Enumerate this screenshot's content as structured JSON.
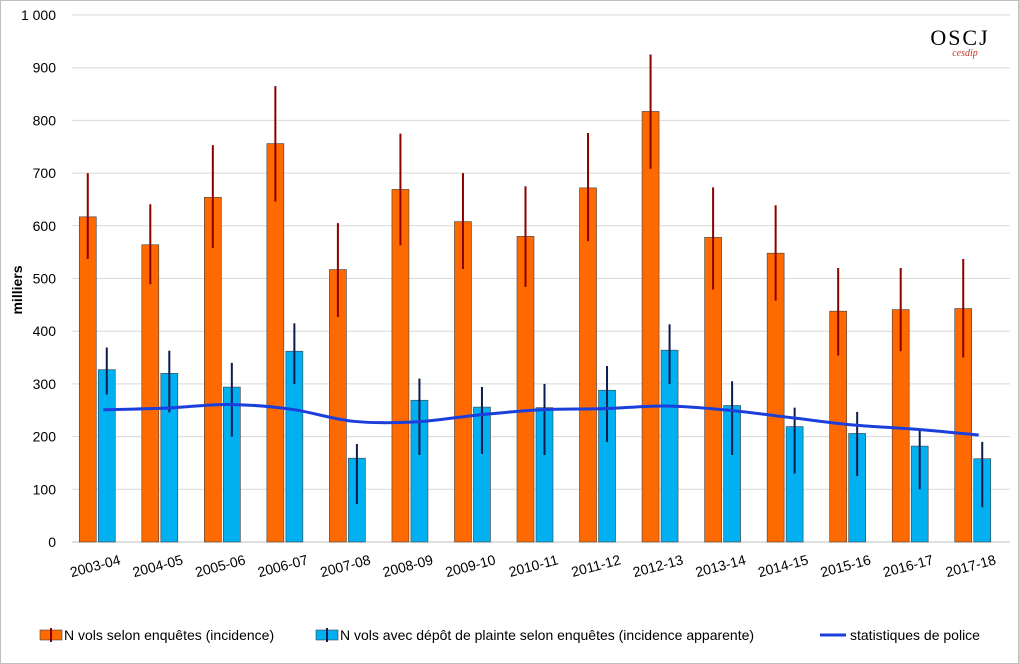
{
  "logo": {
    "main": "OSCJ",
    "sub": "cesdip"
  },
  "chart_data": {
    "type": "bar",
    "ylabel": "milliers",
    "ylim": [
      0,
      1000
    ],
    "yticks": [
      0,
      100,
      200,
      300,
      400,
      500,
      600,
      700,
      800,
      900,
      1000
    ],
    "ytick_labels": [
      "0",
      "100",
      "200",
      "300",
      "400",
      "500",
      "600",
      "700",
      "800",
      "900",
      "1 000"
    ],
    "grid": true,
    "legend_position": "bottom",
    "categories": [
      "2003-04",
      "2004-05",
      "2005-06",
      "2006-07",
      "2007-08",
      "2008-09",
      "2009-10",
      "2010-11",
      "2011-12",
      "2012-13",
      "2013-14",
      "2014-15",
      "2015-16",
      "2016-17",
      "2017-18"
    ],
    "series": [
      {
        "name": "N vols  selon enquêtes (incidence)",
        "kind": "bar",
        "color": "#ff6a00",
        "values": [
          617,
          564,
          654,
          756,
          517,
          669,
          608,
          580,
          672,
          817,
          578,
          548,
          438,
          441,
          443
        ],
        "err_low": [
          537,
          489,
          558,
          646,
          427,
          563,
          518,
          484,
          571,
          708,
          479,
          458,
          354,
          362,
          350
        ],
        "err_high": [
          700,
          641,
          753,
          865,
          605,
          775,
          700,
          675,
          776,
          925,
          673,
          639,
          520,
          520,
          537
        ],
        "err_color": "#8b0000"
      },
      {
        "name": "N vols  avec dépôt de plainte selon enquêtes (incidence apparente)",
        "kind": "bar",
        "color": "#00b0f0",
        "values": [
          327,
          320,
          294,
          362,
          159,
          269,
          256,
          255,
          288,
          364,
          259,
          219,
          206,
          182,
          158
        ],
        "err_low": [
          280,
          246,
          200,
          300,
          72,
          165,
          167,
          165,
          190,
          300,
          165,
          130,
          125,
          100,
          66
        ],
        "err_high": [
          369,
          363,
          340,
          415,
          186,
          310,
          294,
          300,
          334,
          413,
          305,
          255,
          247,
          215,
          190
        ],
        "err_color": "#0d1b4f"
      },
      {
        "name": "statistiques de police",
        "kind": "line",
        "color": "#1c3fdc",
        "values": [
          251,
          254,
          261,
          252,
          229,
          228,
          241,
          251,
          253,
          258,
          250,
          236,
          222,
          214,
          203
        ]
      }
    ]
  }
}
